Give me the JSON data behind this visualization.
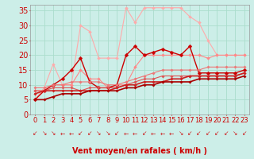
{
  "background_color": "#cceee8",
  "grid_color": "#aaddcc",
  "x": [
    0,
    1,
    2,
    3,
    4,
    5,
    6,
    7,
    8,
    9,
    10,
    11,
    12,
    13,
    14,
    15,
    16,
    17,
    18,
    19,
    20,
    21,
    22,
    23
  ],
  "ylim": [
    0,
    37
  ],
  "xlim": [
    -0.5,
    23.5
  ],
  "yticks": [
    0,
    5,
    10,
    15,
    20,
    25,
    30,
    35
  ],
  "series": [
    {
      "name": "light_pink_high",
      "color": "#ffaaaa",
      "linewidth": 0.8,
      "markersize": 2.0,
      "y": [
        5,
        9,
        17,
        10,
        10,
        30,
        28,
        19,
        19,
        19,
        36,
        31,
        36,
        36,
        36,
        36,
        36,
        33,
        31,
        25,
        20,
        20,
        20,
        20
      ]
    },
    {
      "name": "light_pink_mid",
      "color": "#ff8888",
      "linewidth": 0.8,
      "markersize": 2.0,
      "y": [
        8,
        8,
        10,
        10,
        10,
        15,
        12,
        12,
        9,
        10,
        10,
        16,
        20,
        20,
        20,
        20,
        20,
        20,
        20,
        19,
        20,
        20,
        20,
        20
      ]
    },
    {
      "name": "dark_red_jagged",
      "color": "#cc0000",
      "linewidth": 1.0,
      "markersize": 2.5,
      "y": [
        5,
        8,
        10,
        12,
        15,
        19,
        11,
        9,
        9,
        10,
        20,
        23,
        20,
        21,
        22,
        21,
        20,
        23,
        14,
        14,
        14,
        14,
        14,
        15
      ]
    },
    {
      "name": "line_lower1",
      "color": "#dd5555",
      "linewidth": 0.8,
      "markersize": 1.8,
      "y": [
        8,
        8,
        9,
        9,
        9,
        8,
        9,
        9,
        9,
        9,
        10,
        11,
        12,
        12,
        13,
        13,
        13,
        13,
        13,
        13,
        13,
        13,
        13,
        14
      ]
    },
    {
      "name": "line_lower2",
      "color": "#ee7777",
      "linewidth": 0.8,
      "markersize": 1.8,
      "y": [
        9,
        9,
        10,
        10,
        11,
        11,
        11,
        11,
        10,
        10,
        11,
        12,
        13,
        14,
        15,
        15,
        15,
        15,
        15,
        16,
        16,
        16,
        16,
        16
      ]
    },
    {
      "name": "line_lower3",
      "color": "#cc2222",
      "linewidth": 1.2,
      "markersize": 1.8,
      "y": [
        7,
        8,
        8,
        8,
        8,
        8,
        8,
        8,
        8,
        9,
        10,
        10,
        11,
        11,
        11,
        12,
        12,
        13,
        13,
        13,
        13,
        13,
        13,
        14
      ]
    },
    {
      "name": "line_bottom",
      "color": "#aa0000",
      "linewidth": 1.2,
      "markersize": 1.8,
      "y": [
        5,
        5,
        6,
        7,
        7,
        7,
        8,
        8,
        8,
        8,
        9,
        9,
        10,
        10,
        11,
        11,
        11,
        11,
        12,
        12,
        12,
        12,
        12,
        13
      ]
    }
  ],
  "arrows": [
    "↙",
    "↘",
    "↘",
    "←",
    "←",
    "↙",
    "↙",
    "↘",
    "↘",
    "↙",
    "←",
    "←",
    "↙",
    "←",
    "←",
    "←",
    "↘",
    "↙",
    "↙",
    "↙",
    "↙",
    "↙",
    "↘",
    "↙"
  ],
  "arrow_color": "#cc2222",
  "xlabel": "Vent moyen/en rafales ( km/h )",
  "xlabel_color": "#cc0000",
  "xlabel_fontsize": 7,
  "tick_fontsize": 6,
  "ytick_color": "#cc0000",
  "xtick_color": "#cc0000"
}
